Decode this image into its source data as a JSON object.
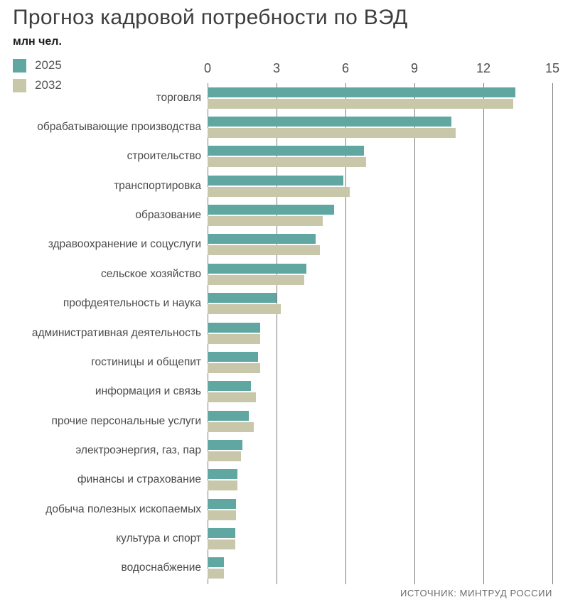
{
  "header": {
    "title": "Прогноз кадровой потребности по ВЭД",
    "units": "млн чел."
  },
  "legend": [
    {
      "label": "2025",
      "color": "#5fa7a0"
    },
    {
      "label": "2032",
      "color": "#c8c7aa"
    }
  ],
  "footer": {
    "source": "ИСТОЧНИК: МИНТРУД РОССИИ"
  },
  "chart_data": {
    "type": "bar",
    "orientation": "horizontal",
    "title": "Прогноз кадровой потребности по ВЭД",
    "units": "млн чел.",
    "xlim": [
      0,
      15
    ],
    "xticks": [
      0,
      3,
      6,
      9,
      12,
      15
    ],
    "grid": true,
    "legend_position": "top-left",
    "categories": [
      "торговля",
      "обрабатывающие производства",
      "строительство",
      "транспортировка",
      "образование",
      "здравоохранение и соцуслуги",
      "сельское хозяйство",
      "профдеятельность и наука",
      "административная деятельность",
      "гостиницы и общепит",
      "информация и связь",
      "прочие персональные услуги",
      "электроэнергия, газ, пар",
      "финансы и страхование",
      "добыча полезных ископаемых",
      "культура и спорт",
      "водоснабжение"
    ],
    "series": [
      {
        "name": "2025",
        "color": "#5fa7a0",
        "values": [
          13.4,
          10.6,
          6.8,
          5.9,
          5.5,
          4.7,
          4.3,
          3.0,
          2.3,
          2.2,
          1.9,
          1.8,
          1.5,
          1.3,
          1.25,
          1.2,
          0.7
        ]
      },
      {
        "name": "2032",
        "color": "#c8c7aa",
        "values": [
          13.3,
          10.8,
          6.9,
          6.2,
          5.0,
          4.9,
          4.2,
          3.2,
          2.3,
          2.3,
          2.1,
          2.0,
          1.45,
          1.3,
          1.25,
          1.2,
          0.7
        ]
      }
    ],
    "source": "ИСТОЧНИК: МИНТРУД РОССИИ"
  }
}
